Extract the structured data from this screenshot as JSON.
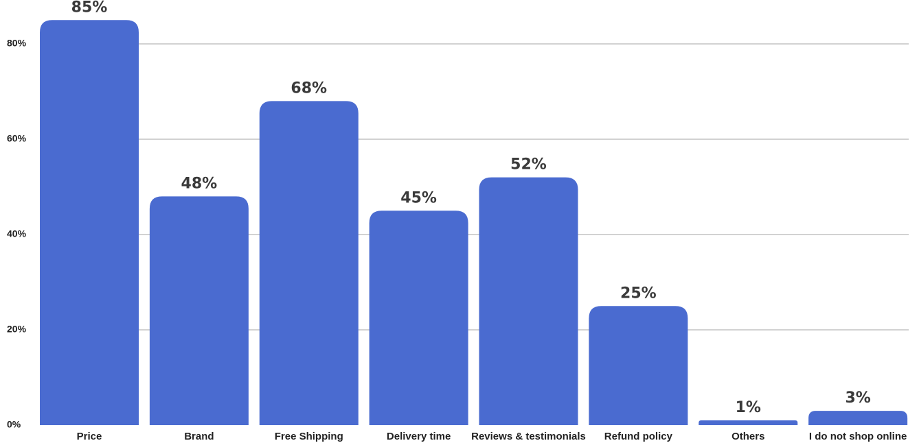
{
  "chart_data": {
    "type": "bar",
    "categories": [
      "Price",
      "Brand",
      "Free Shipping",
      "Delivery time",
      "Reviews & testimonials",
      "Refund policy",
      "Others",
      "I do not shop online"
    ],
    "values": [
      85,
      48,
      68,
      45,
      52,
      25,
      1,
      3
    ],
    "data_labels": [
      "85%",
      "48%",
      "68%",
      "45%",
      "52%",
      "25%",
      "1%",
      "3%"
    ],
    "title": "",
    "xlabel": "",
    "ylabel": "",
    "ylim": [
      0,
      90
    ],
    "y_ticks": [
      0,
      20,
      40,
      60,
      80
    ],
    "y_tick_labels": [
      "0%",
      "20%",
      "40%",
      "60%",
      "80%"
    ],
    "grid": true,
    "legend": "none",
    "colors": {
      "bar": "#4a6bd0",
      "grid": "#b8b8b8",
      "text": "#222222"
    }
  }
}
